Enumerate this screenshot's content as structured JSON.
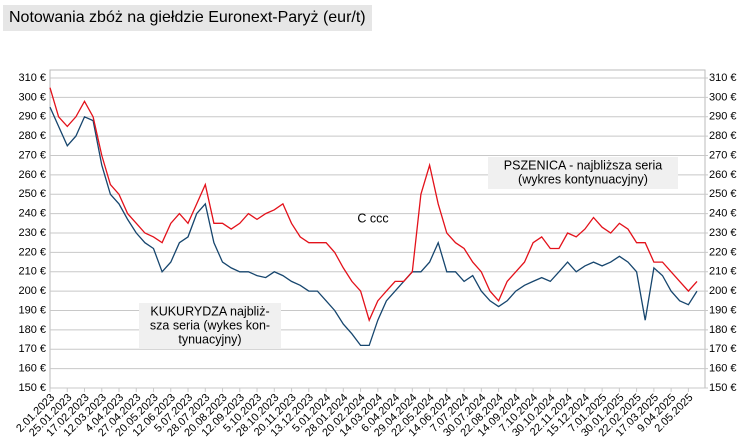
{
  "chart_data": {
    "type": "line",
    "title": "Notowania zbóż na giełdzie Euronext-Paryż (eur/t)",
    "categories": [
      "2.01.2023",
      null,
      "25.01.2023",
      null,
      "17.02.2023",
      null,
      "12.03.2023",
      null,
      "4.04.2023",
      null,
      "27.04.2023",
      null,
      "20.05.2023",
      null,
      "12.06.2023",
      null,
      "5.07.2023",
      null,
      "28.07.2023",
      null,
      "20.08.2023",
      null,
      "12.09.2023",
      null,
      "5.10.2023",
      null,
      "28.10.2023",
      null,
      "20.11.2023",
      null,
      "13.12.2023",
      null,
      "5.01.2024",
      null,
      "28.01.2024",
      null,
      "20.02.2024",
      null,
      "14.03.2024",
      null,
      "6.04.2024",
      null,
      "29.04.2024",
      null,
      "22.05.2024",
      null,
      "14.06.2024",
      null,
      "7.07.2024",
      null,
      "30.07.2024",
      null,
      "22.08.2024",
      null,
      "14.09.2024",
      null,
      "7.10.2024",
      null,
      "30.10.2024",
      null,
      "22.11.2024",
      null,
      "15.12.2024",
      null,
      "7.01.2025",
      null,
      "30.01.2025",
      null,
      "22.02.2025",
      null,
      "17.03.2025",
      null,
      "9.04.2025",
      null,
      "2.05.2025",
      null
    ],
    "series": [
      {
        "color": "#e3121b",
        "values": [
          305,
          290,
          285,
          290,
          298,
          290,
          270,
          255,
          250,
          240,
          235,
          230,
          228,
          225,
          235,
          240,
          235,
          245,
          255,
          235,
          235,
          232,
          235,
          240,
          237,
          240,
          242,
          245,
          235,
          228,
          225,
          225,
          225,
          220,
          212,
          205,
          200,
          185,
          195,
          200,
          205,
          205,
          210,
          250,
          265,
          245,
          230,
          225,
          222,
          215,
          210,
          200,
          195,
          205,
          210,
          215,
          225,
          228,
          222,
          222,
          230,
          228,
          232,
          238,
          233,
          230,
          235,
          232,
          225,
          225,
          215,
          215,
          210,
          205,
          200,
          205
        ]
      },
      {
        "color": "#17466e",
        "values": [
          295,
          285,
          275,
          280,
          290,
          288,
          265,
          250,
          245,
          237,
          230,
          225,
          222,
          210,
          215,
          225,
          228,
          240,
          245,
          225,
          215,
          212,
          210,
          210,
          208,
          207,
          210,
          208,
          205,
          203,
          200,
          200,
          195,
          190,
          183,
          178,
          172,
          172,
          185,
          195,
          200,
          205,
          210,
          210,
          215,
          225,
          210,
          210,
          205,
          208,
          200,
          195,
          192,
          195,
          200,
          203,
          205,
          207,
          205,
          210,
          215,
          210,
          213,
          215,
          213,
          215,
          218,
          215,
          210,
          185,
          212,
          208,
          200,
          195,
          193,
          200
        ]
      }
    ],
    "annotations": [
      {
        "lines": [
          "PSZENICA - najbliższa seria",
          "(wykres kontynuacyjny)"
        ]
      },
      {
        "lines": [
          "KUKURYDZA najbliż-",
          "sza seria (wykes kon-",
          "tynuacyjny)"
        ]
      },
      {
        "lines": [
          "C ccc"
        ]
      }
    ],
    "ylim": [
      150,
      310
    ],
    "yticks": [
      {
        "value": 150,
        "label": "150 €"
      },
      {
        "value": 160,
        "label": "160 €"
      },
      {
        "value": 170,
        "label": "170 €"
      },
      {
        "value": 180,
        "label": "180 €"
      },
      {
        "value": 190,
        "label": "190 €"
      },
      {
        "value": 200,
        "label": "200 €"
      },
      {
        "value": 210,
        "label": "210 €"
      },
      {
        "value": 220,
        "label": "220 €"
      },
      {
        "value": 230,
        "label": "230 €"
      },
      {
        "value": 240,
        "label": "240 €"
      },
      {
        "value": 250,
        "label": "250 €"
      },
      {
        "value": 260,
        "label": "260 €"
      },
      {
        "value": 270,
        "label": "270 €"
      },
      {
        "value": 280,
        "label": "280 €"
      },
      {
        "value": 290,
        "label": "290 €"
      },
      {
        "value": 300,
        "label": "300 €"
      },
      {
        "value": 310,
        "label": "310 €"
      }
    ],
    "y2lim": [
      150,
      310
    ],
    "y2ticks": [
      {
        "value": 150,
        "label": "150 €"
      },
      {
        "value": 160,
        "label": "160 €"
      },
      {
        "value": 170,
        "label": "170 €"
      },
      {
        "value": 180,
        "label": "180 €"
      },
      {
        "value": 190,
        "label": "190 €"
      },
      {
        "value": 200,
        "label": "200 €"
      },
      {
        "value": 210,
        "label": "210 €"
      },
      {
        "value": 220,
        "label": "220 €"
      },
      {
        "value": 230,
        "label": "230 €"
      },
      {
        "value": 240,
        "label": "240 €"
      },
      {
        "value": 250,
        "label": "250 €"
      },
      {
        "value": 260,
        "label": "260 €"
      },
      {
        "value": 270,
        "label": "270 €"
      },
      {
        "value": 280,
        "label": "280 €"
      },
      {
        "value": 290,
        "label": "290 €"
      },
      {
        "value": 300,
        "label": "300 €"
      },
      {
        "value": 310,
        "label": "310 €"
      }
    ],
    "grid": true
  }
}
